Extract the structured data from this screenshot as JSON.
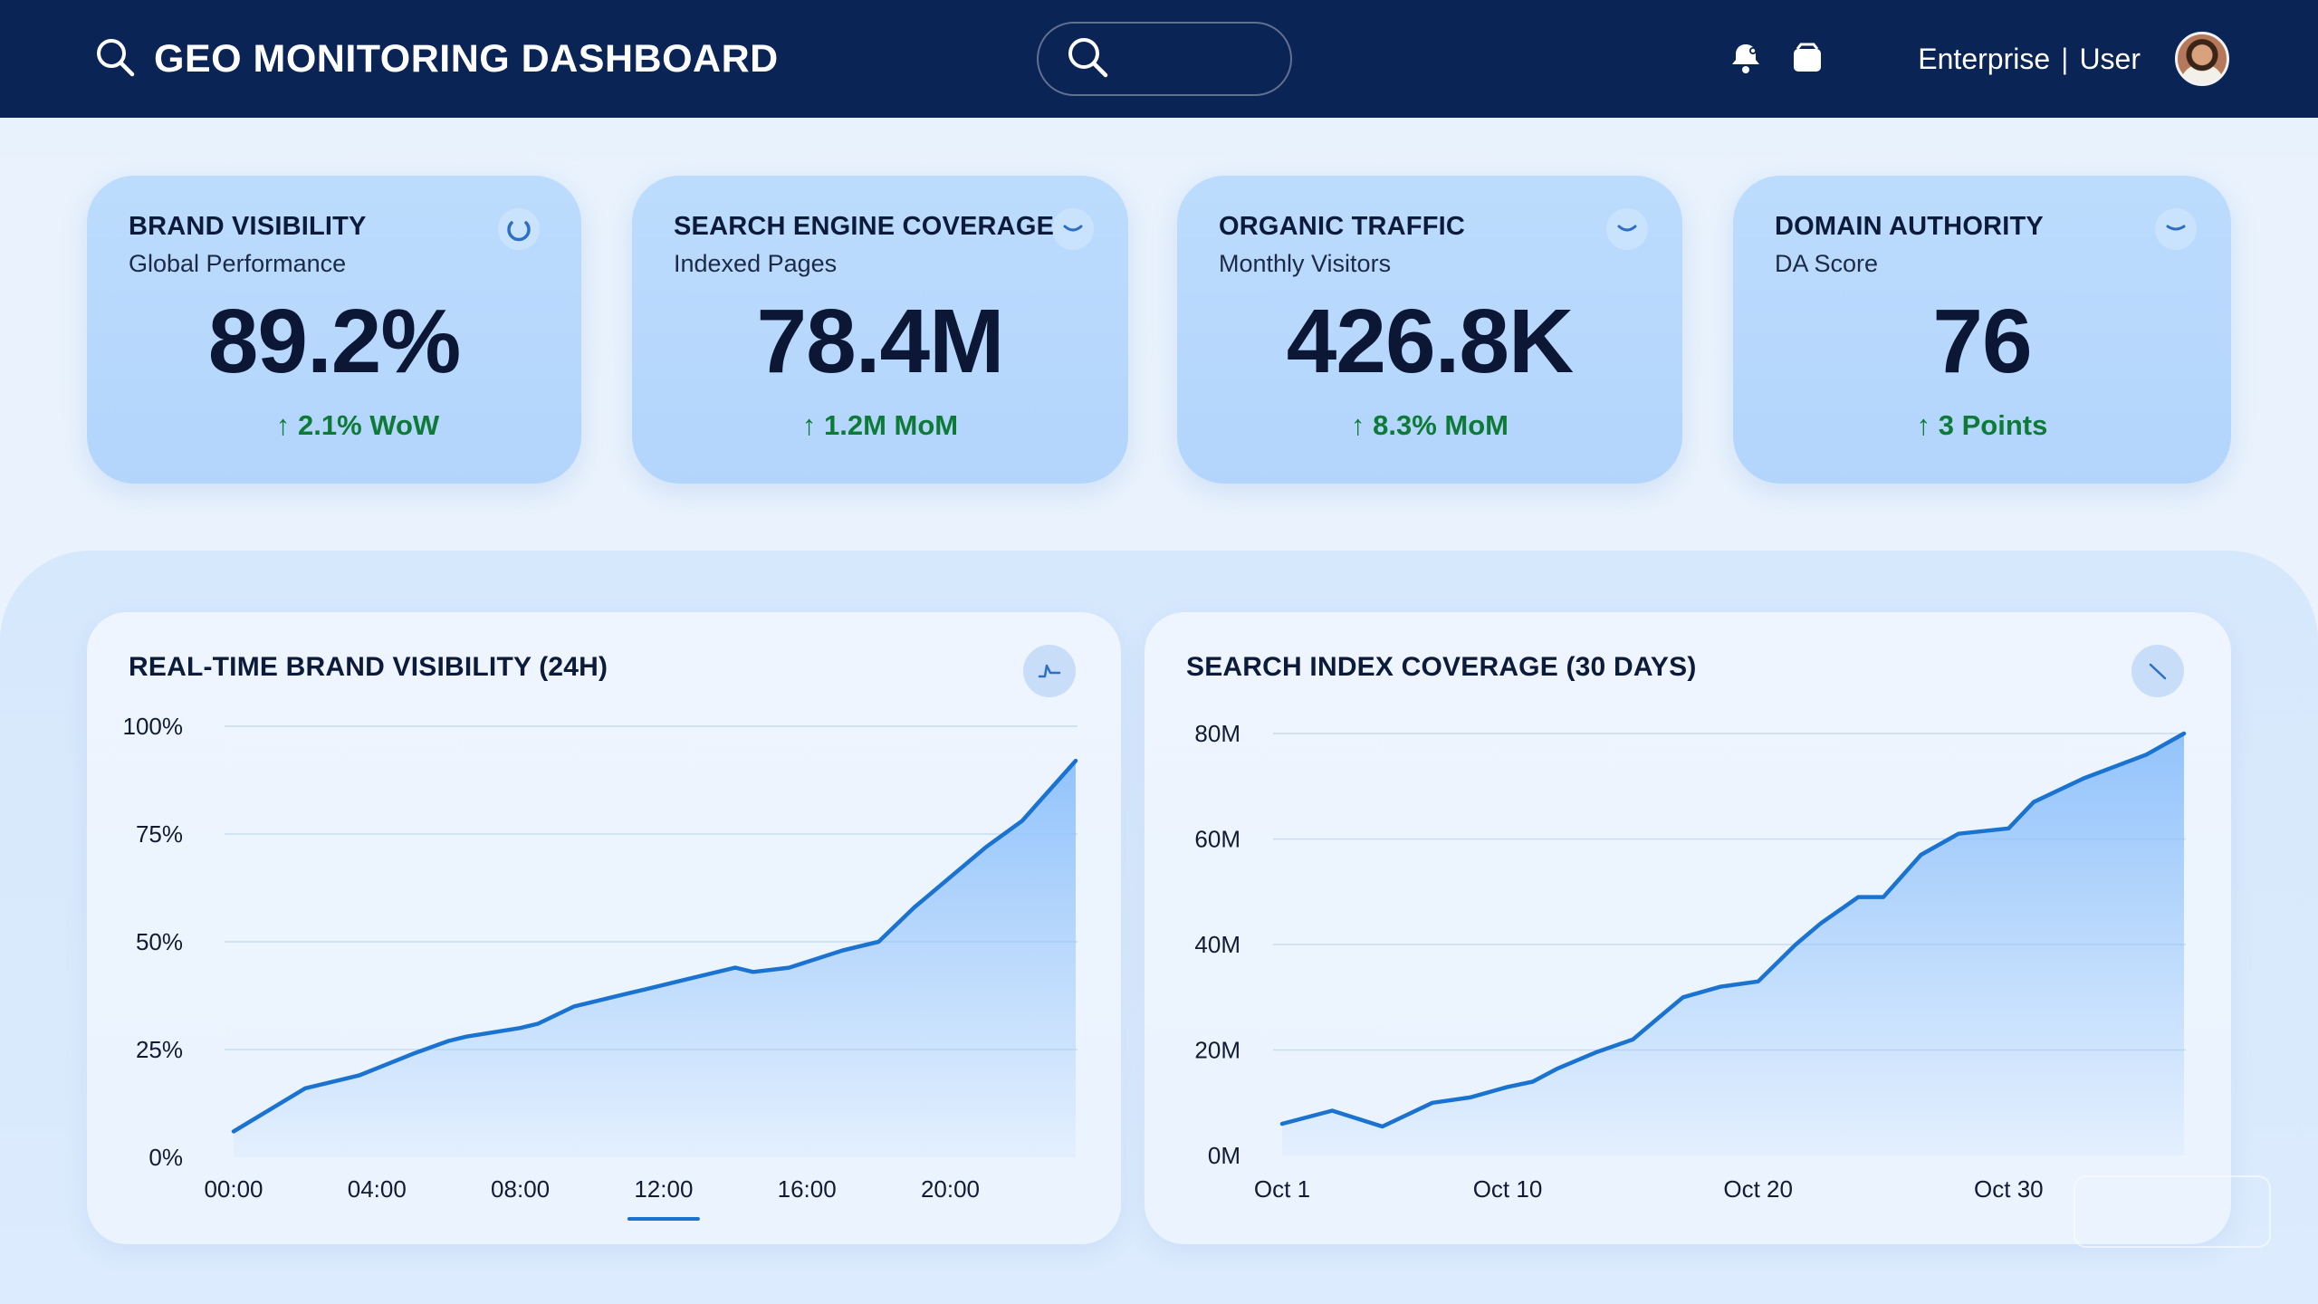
{
  "header": {
    "title": "GEO MONITORING DASHBOARD",
    "account_plan": "Enterprise",
    "account_separator": "|",
    "account_role": "User",
    "icons": [
      "search-icon",
      "notification-bell-icon",
      "inbox-icon",
      "user-avatar"
    ]
  },
  "search": {
    "placeholder": ""
  },
  "kpis": [
    {
      "title": "BRAND VISIBILITY",
      "subtitle": "Global Performance",
      "value": "89.2%",
      "delta": "↑ 2.1% WoW",
      "icon": "refresh-icon"
    },
    {
      "title": "SEARCH ENGINE COVERAGE",
      "subtitle": "Indexed Pages",
      "value": "78.4M",
      "delta": "↑ 1.2M MoM",
      "icon": "chevron-down-icon"
    },
    {
      "title": "ORGANIC TRAFFIC",
      "subtitle": "Monthly Visitors",
      "value": "426.8K",
      "delta": "↑ 8.3% MoM",
      "icon": "chevron-down-icon"
    },
    {
      "title": "DOMAIN AUTHORITY",
      "subtitle": "DA Score",
      "value": "76",
      "delta": "↑ 3 Points",
      "icon": "chevron-down-icon"
    }
  ],
  "colors": {
    "header_bg": "#0b2456",
    "card_bg": "#b8d9fc",
    "positive": "#0d7a37",
    "line": "#1a73d1",
    "area": "#8ec1fb"
  },
  "chart_data": [
    {
      "type": "area",
      "title": "REAL-TIME BRAND VISIBILITY (24H)",
      "x_unit": "hour",
      "x_tick_labels": [
        "00:00",
        "04:00",
        "08:00",
        "12:00",
        "16:00",
        "20:00"
      ],
      "x_ticks": [
        0,
        4,
        8,
        12,
        16,
        20
      ],
      "selected_tick": "12:00",
      "y_tick_labels": [
        "0%",
        "25%",
        "50%",
        "75%",
        "100%"
      ],
      "y_ticks": [
        0,
        25,
        50,
        75,
        100
      ],
      "xlim": [
        0,
        23.5
      ],
      "ylim": [
        0,
        100
      ],
      "grid": true,
      "x": [
        0,
        2,
        3.5,
        5,
        6,
        6.5,
        8,
        8.5,
        9.5,
        11,
        11.5,
        12.5,
        14,
        14.5,
        15.5,
        17,
        18,
        19,
        20,
        21,
        22,
        23.5
      ],
      "y": [
        6,
        16,
        19,
        24,
        27,
        28,
        30,
        31,
        35,
        38,
        39,
        41,
        44,
        43,
        44,
        48,
        50,
        58,
        65,
        72,
        78,
        92
      ]
    },
    {
      "type": "area",
      "title": "SEARCH INDEX COVERAGE (30 DAYS)",
      "x_unit": "day of October",
      "x_tick_labels": [
        "Oct 1",
        "Oct 10",
        "Oct 20",
        "Oct 30"
      ],
      "x_ticks": [
        1,
        10,
        20,
        30
      ],
      "y_tick_labels": [
        "0M",
        "20M",
        "40M",
        "60M",
        "80M"
      ],
      "y_ticks": [
        0,
        20,
        40,
        60,
        80
      ],
      "xlim": [
        1,
        37
      ],
      "ylim": [
        0,
        80
      ],
      "grid": true,
      "x": [
        1,
        3,
        5,
        7,
        8.5,
        10,
        11,
        12,
        13.5,
        15,
        16,
        17,
        18.5,
        20,
        21.5,
        22.5,
        24,
        25,
        26.5,
        28,
        30,
        31,
        33,
        35.5,
        37
      ],
      "y": [
        6,
        8.5,
        5.5,
        10,
        11,
        13,
        14,
        16.5,
        19.5,
        22,
        26,
        30,
        32,
        33,
        40,
        44,
        49,
        49,
        57,
        61,
        62,
        67,
        71.5,
        76,
        80
      ]
    }
  ]
}
